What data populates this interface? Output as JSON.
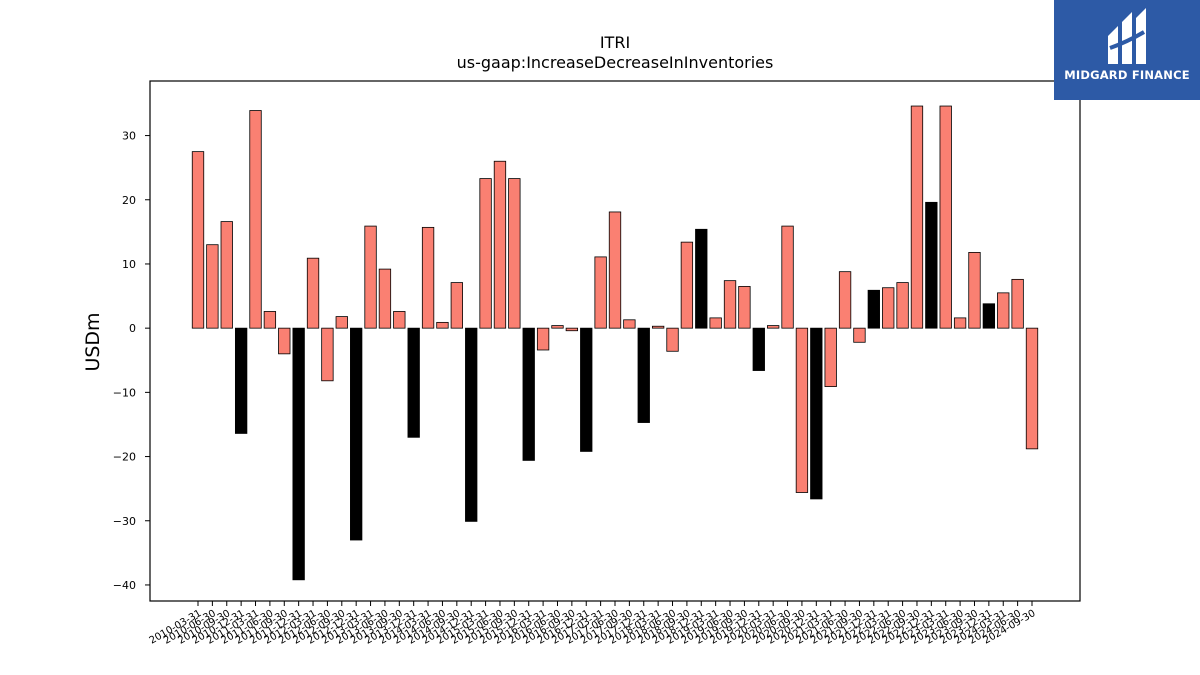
{
  "chart_data": {
    "type": "bar",
    "title": "ITRI",
    "subtitle": "us-gaap:IncreaseDecreaseInInventories",
    "xlabel": "",
    "ylabel": "USDm",
    "ylim": [
      -42.5,
      38.5
    ],
    "yticks": [
      -40,
      -30,
      -20,
      -10,
      0,
      10,
      20,
      30
    ],
    "grid": false,
    "colors": {
      "salmon": "#fa8072",
      "black": "#000000",
      "edge": "#000000"
    },
    "categories": [
      "2010-03-31",
      "2010-06-30",
      "2010-09-30",
      "2010-12-31",
      "2011-03-31",
      "2011-06-30",
      "2011-09-30",
      "2011-12-31",
      "2012-03-31",
      "2012-06-30",
      "2012-09-30",
      "2012-12-31",
      "2013-03-31",
      "2013-06-30",
      "2013-09-30",
      "2013-12-31",
      "2014-03-31",
      "2014-06-30",
      "2014-09-30",
      "2014-12-31",
      "2015-03-31",
      "2015-06-30",
      "2015-09-30",
      "2015-12-31",
      "2016-03-31",
      "2016-06-30",
      "2016-09-30",
      "2016-12-31",
      "2017-03-31",
      "2017-06-30",
      "2017-09-30",
      "2017-12-31",
      "2018-03-31",
      "2018-06-30",
      "2018-09-30",
      "2018-12-31",
      "2019-03-31",
      "2019-06-30",
      "2019-09-30",
      "2019-12-31",
      "2020-03-31",
      "2020-06-30",
      "2020-09-30",
      "2020-12-31",
      "2021-03-31",
      "2021-06-30",
      "2021-09-30",
      "2021-12-31",
      "2022-03-31",
      "2022-06-30",
      "2022-09-30",
      "2022-12-31",
      "2023-03-31",
      "2023-06-30",
      "2023-09-30",
      "2023-12-31",
      "2024-03-31",
      "2024-06-30",
      "2024-09-30"
    ],
    "values": [
      27.5,
      13.0,
      16.6,
      -16.4,
      33.9,
      2.6,
      -4.0,
      -39.2,
      10.9,
      -8.2,
      1.8,
      -33.0,
      15.9,
      9.2,
      2.6,
      -17.0,
      15.7,
      0.9,
      7.1,
      -30.1,
      23.3,
      26.0,
      23.3,
      -20.6,
      -3.4,
      0.4,
      -0.4,
      -19.2,
      11.1,
      18.1,
      1.3,
      -14.7,
      0.3,
      -3.6,
      13.4,
      15.4,
      1.6,
      7.4,
      6.5,
      -6.6,
      0.4,
      15.9,
      -25.6,
      -26.6,
      -9.1,
      8.8,
      -2.2,
      5.9,
      6.3,
      7.1,
      34.6,
      19.6,
      34.6,
      1.6,
      11.8,
      3.8,
      5.5,
      7.6,
      -18.8
    ],
    "bar_colors": [
      "salmon",
      "salmon",
      "salmon",
      "black",
      "salmon",
      "salmon",
      "salmon",
      "black",
      "salmon",
      "salmon",
      "salmon",
      "black",
      "salmon",
      "salmon",
      "salmon",
      "black",
      "salmon",
      "salmon",
      "salmon",
      "black",
      "salmon",
      "salmon",
      "salmon",
      "black",
      "salmon",
      "salmon",
      "salmon",
      "black",
      "salmon",
      "salmon",
      "salmon",
      "black",
      "salmon",
      "salmon",
      "salmon",
      "black",
      "salmon",
      "salmon",
      "salmon",
      "black",
      "salmon",
      "salmon",
      "salmon",
      "black",
      "salmon",
      "salmon",
      "salmon",
      "black",
      "salmon",
      "salmon",
      "salmon",
      "black",
      "salmon",
      "salmon",
      "salmon",
      "black",
      "salmon",
      "salmon",
      "salmon"
    ]
  },
  "logo": {
    "text": "MIDGARD FINANCE",
    "background": "#2d5aa6"
  }
}
